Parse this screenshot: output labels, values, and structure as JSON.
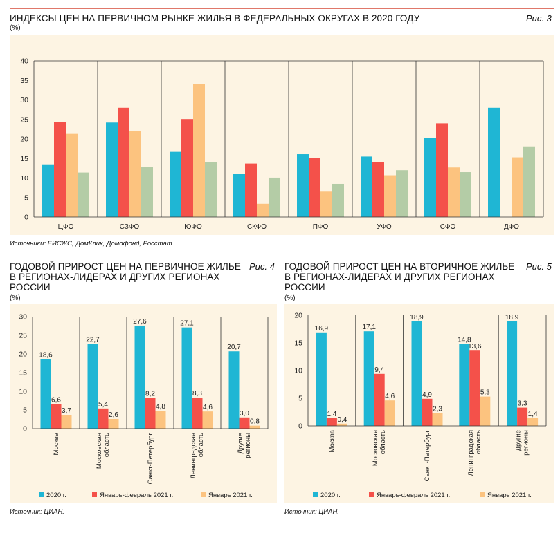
{
  "colors": {
    "c2020": "#1fb6d4",
    "cJanFeb": "#f4514a",
    "cJan": "#fcc37f",
    "cExtra": "#b4cca6",
    "panel": "#fdf4e3",
    "rule": "#e0786a"
  },
  "fig3": {
    "title": "ИНДЕКСЫ ЦЕН НА ПЕРВИЧНОМ РЫНКЕ ЖИЛЬЯ В ФЕДЕРАЛЬНЫХ ОКРУГАХ В 2020 ГОДУ",
    "unit": "(%)",
    "fig_label": "Рис. 3",
    "source": "Источники: ЕИСЖС, ДомКлик, Домофонд, Росстат."
  },
  "fig4": {
    "title_lines": [
      "ГОДОВОЙ ПРИРОСТ ЦЕН НА ПЕРВИЧНОЕ ЖИЛЬЕ",
      "В РЕГИОНАХ-ЛИДЕРАХ И ДРУГИХ РЕГИОНАХ",
      "РОССИИ"
    ],
    "unit": "(%)",
    "fig_label": "Рис. 4",
    "source": "Источник: ЦИАН."
  },
  "fig5": {
    "title_lines": [
      "ГОДОВОЙ ПРИРОСТ ЦЕН НА ВТОРИЧНОЕ ЖИЛЬЕ",
      "В РЕГИОНАХ-ЛИДЕРАХ И ДРУГИХ РЕГИОНАХ",
      "РОССИИ"
    ],
    "unit": "(%)",
    "fig_label": "Рис. 5",
    "source": "Источник: ЦИАН."
  },
  "chart_data": [
    {
      "type": "bar",
      "categories": [
        "ЦФО",
        "СЗФО",
        "ЮФО",
        "СКФО",
        "ПФО",
        "УФО",
        "СФО",
        "ДФО"
      ],
      "series": [
        {
          "name": "series-1",
          "values": [
            13.5,
            24.2,
            16.7,
            11.0,
            16.1,
            15.5,
            20.2,
            28.0
          ]
        },
        {
          "name": "series-2",
          "values": [
            24.4,
            28.0,
            25.1,
            13.7,
            15.2,
            14.0,
            24.0,
            0
          ]
        },
        {
          "name": "series-3",
          "values": [
            21.3,
            22.1,
            34.0,
            3.4,
            6.5,
            10.7,
            12.7,
            15.3
          ]
        },
        {
          "name": "series-4",
          "values": [
            11.4,
            12.8,
            14.1,
            10.1,
            8.5,
            12.0,
            11.5,
            18.1
          ]
        }
      ],
      "ylim": [
        0,
        40
      ],
      "yticks": [
        0,
        5,
        10,
        15,
        20,
        25,
        30,
        35,
        40
      ],
      "title": "ИНДЕКСЫ ЦЕН НА ПЕРВИЧНОМ РЫНКЕ ЖИЛЬЯ В ФЕДЕРАЛЬНЫХ ОКРУГАХ В 2020 ГОДУ",
      "ylabel": "(%)",
      "grid": "vertical separators"
    },
    {
      "type": "bar",
      "categories": [
        "Москва",
        "Московская область",
        "Санкт-Петербург",
        "Ленинградская область",
        "Другие регионы"
      ],
      "series": [
        {
          "name": "2020 г.",
          "values": [
            18.6,
            22.7,
            27.6,
            27.1,
            20.7
          ],
          "labels": [
            "18,6",
            "22,7",
            "27,6",
            "27,1",
            "20,7"
          ]
        },
        {
          "name": "Январь-февраль 2021 г.",
          "values": [
            6.6,
            5.4,
            8.2,
            8.3,
            3.0
          ],
          "labels": [
            "6,6",
            "5,4",
            "8,2",
            "8,3",
            "3,0"
          ]
        },
        {
          "name": "Январь 2021 г.",
          "values": [
            3.7,
            2.6,
            4.8,
            4.6,
            0.8
          ],
          "labels": [
            "3,7",
            "2,6",
            "4,8",
            "4,6",
            "0,8"
          ]
        }
      ],
      "ylim": [
        0,
        30
      ],
      "yticks": [
        0,
        5,
        10,
        15,
        20,
        25,
        30
      ],
      "title": "ГОДОВОЙ ПРИРОСТ ЦЕН НА ПЕРВИЧНОЕ ЖИЛЬЕ В РЕГИОНАХ-ЛИДЕРАХ И ДРУГИХ РЕГИОНАХ РОССИИ",
      "ylabel": "(%)",
      "legend": "bottom"
    },
    {
      "type": "bar",
      "categories": [
        "Москва",
        "Московская область",
        "Санкт-Петербург",
        "Ленинградская область",
        "Другие регионы"
      ],
      "series": [
        {
          "name": "2020 г.",
          "values": [
            16.9,
            17.1,
            18.9,
            14.8,
            18.9
          ],
          "labels": [
            "16,9",
            "17,1",
            "18,9",
            "14,8",
            "18,9"
          ]
        },
        {
          "name": "Январь-февраль 2021 г.",
          "values": [
            1.4,
            9.4,
            4.9,
            13.6,
            3.3
          ],
          "labels": [
            "1,4",
            "9,4",
            "4,9",
            "13,6",
            "3,3"
          ]
        },
        {
          "name": "Январь 2021 г.",
          "values": [
            0.4,
            4.6,
            2.3,
            5.3,
            1.4
          ],
          "labels": [
            "0,4",
            "4,6",
            "2,3",
            "5,3",
            "1,4"
          ]
        }
      ],
      "ylim": [
        0,
        20
      ],
      "yticks": [
        0,
        5,
        10,
        15,
        20
      ],
      "title": "ГОДОВОЙ ПРИРОСТ ЦЕН НА ВТОРИЧНОЕ ЖИЛЬЕ В РЕГИОНАХ-ЛИДЕРАХ И ДРУГИХ РЕГИОНАХ РОССИИ",
      "ylabel": "(%)",
      "legend": "bottom"
    }
  ]
}
